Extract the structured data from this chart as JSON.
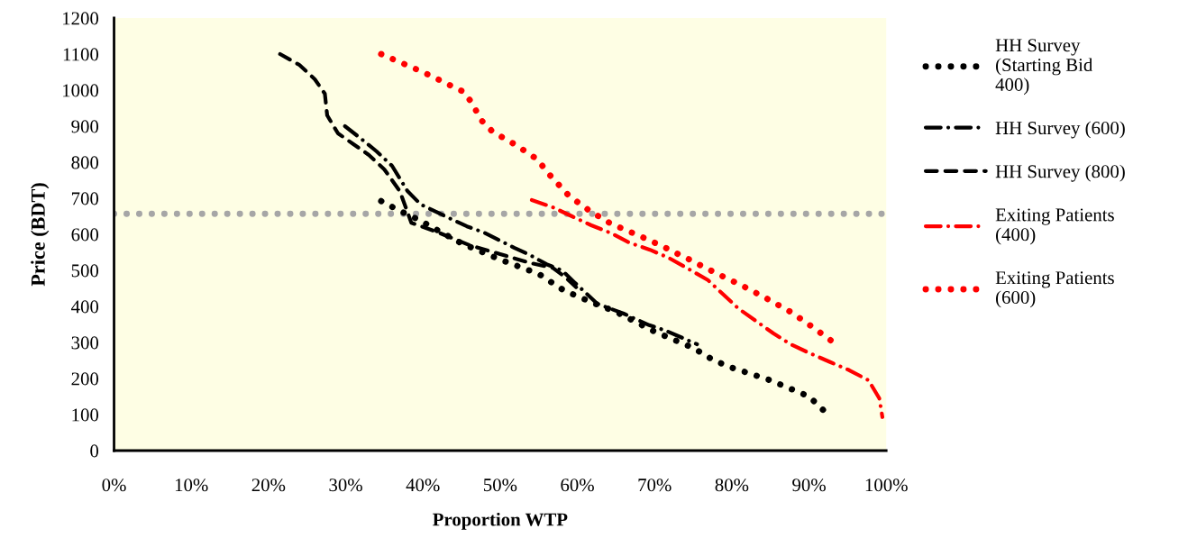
{
  "chart_data": {
    "type": "line",
    "xlabel": "Proportion WTP",
    "ylabel": "Price (BDT)",
    "xlim": [
      0,
      100
    ],
    "ylim": [
      0,
      1200
    ],
    "xticks": [
      {
        "value": 0,
        "label": "0%"
      },
      {
        "value": 10,
        "label": "10%"
      },
      {
        "value": 20,
        "label": "20%"
      },
      {
        "value": 30,
        "label": "30%"
      },
      {
        "value": 40,
        "label": "40%"
      },
      {
        "value": 50,
        "label": "50%"
      },
      {
        "value": 60,
        "label": "60%"
      },
      {
        "value": 70,
        "label": "70%"
      },
      {
        "value": 80,
        "label": "80%"
      },
      {
        "value": 90,
        "label": "90%"
      },
      {
        "value": 100,
        "label": "100%"
      }
    ],
    "yticks": [
      0,
      100,
      200,
      300,
      400,
      500,
      600,
      700,
      800,
      900,
      1000,
      1100,
      1200
    ],
    "grid": false,
    "legend": "right",
    "marker": "none",
    "ref_lines": [
      {
        "axis": "y",
        "value": 657,
        "color": "#a6a6a6",
        "line_style": "dotted"
      }
    ],
    "series": [
      {
        "name": "HH Survey\n(Starting Bid\n400)",
        "color": "#000000",
        "line_style": "dotted",
        "x": [
          34.6,
          37,
          39.5,
          42,
          45,
          50,
          55,
          58.2,
          62,
          65,
          70,
          75,
          77.7,
          80,
          85,
          90,
          92.6
        ],
        "values": [
          692,
          665,
          640,
          610,
          575,
          530,
          490,
          445,
          410,
          385,
          330,
          285,
          250,
          230,
          195,
          150,
          97
        ]
      },
      {
        "name": "HH Survey (600)",
        "color": "#000000",
        "line_style": "dashdot",
        "x": [
          29.9,
          32,
          34,
          36,
          38,
          39.7,
          43.6,
          45.7,
          47.9,
          51.8,
          53.9,
          56,
          58,
          59.6,
          62.6,
          66,
          69.3,
          71.4,
          75.5
        ],
        "values": [
          900,
          865,
          830,
          790,
          720,
          683,
          643,
          622,
          605,
          563,
          542,
          517,
          500,
          467,
          407,
          380,
          348,
          333,
          295
        ]
      },
      {
        "name": "HH Survey (800)",
        "color": "#000000",
        "line_style": "dashed",
        "x": [
          21.5,
          24,
          26,
          27.3,
          27.6,
          29,
          31,
          33,
          35,
          37,
          38.5,
          42,
          46,
          50,
          54,
          56.8,
          58.5,
          60
        ],
        "values": [
          1100,
          1070,
          1030,
          990,
          930,
          880,
          850,
          820,
          780,
          720,
          632,
          605,
          570,
          545,
          520,
          507,
          480,
          450
        ]
      },
      {
        "name": "Exiting Patients\n(400)",
        "color": "#ff0000",
        "line_style": "dashdot",
        "x": [
          54.1,
          56.8,
          59.3,
          61.8,
          64.5,
          66.7,
          69.4,
          71.8,
          74.3,
          76.9,
          78.9,
          80.8,
          83.1,
          85.4,
          87.6,
          90.1,
          92.8,
          95.2,
          97.7,
          99.1,
          99.5
        ],
        "values": [
          695,
          675,
          650,
          625,
          602,
          577,
          557,
          535,
          505,
          473,
          433,
          395,
          360,
          325,
          295,
          270,
          245,
          223,
          195,
          145,
          93
        ]
      },
      {
        "name": "Exiting Patients\n(600)",
        "color": "#ff0000",
        "line_style": "dotted",
        "x": [
          34.6,
          40,
          45.3,
          46.5,
          47.4,
          49,
          52.1,
          54.8,
          56.4,
          58.9,
          61.6,
          64.3,
          67.9,
          71,
          74.5,
          77.7,
          81.3,
          84.5,
          87.6,
          90.5,
          93.5
        ],
        "values": [
          1100,
          1050,
          995,
          960,
          920,
          885,
          847,
          808,
          765,
          707,
          665,
          630,
          597,
          567,
          530,
          495,
          458,
          422,
          385,
          342,
          295
        ]
      }
    ]
  }
}
